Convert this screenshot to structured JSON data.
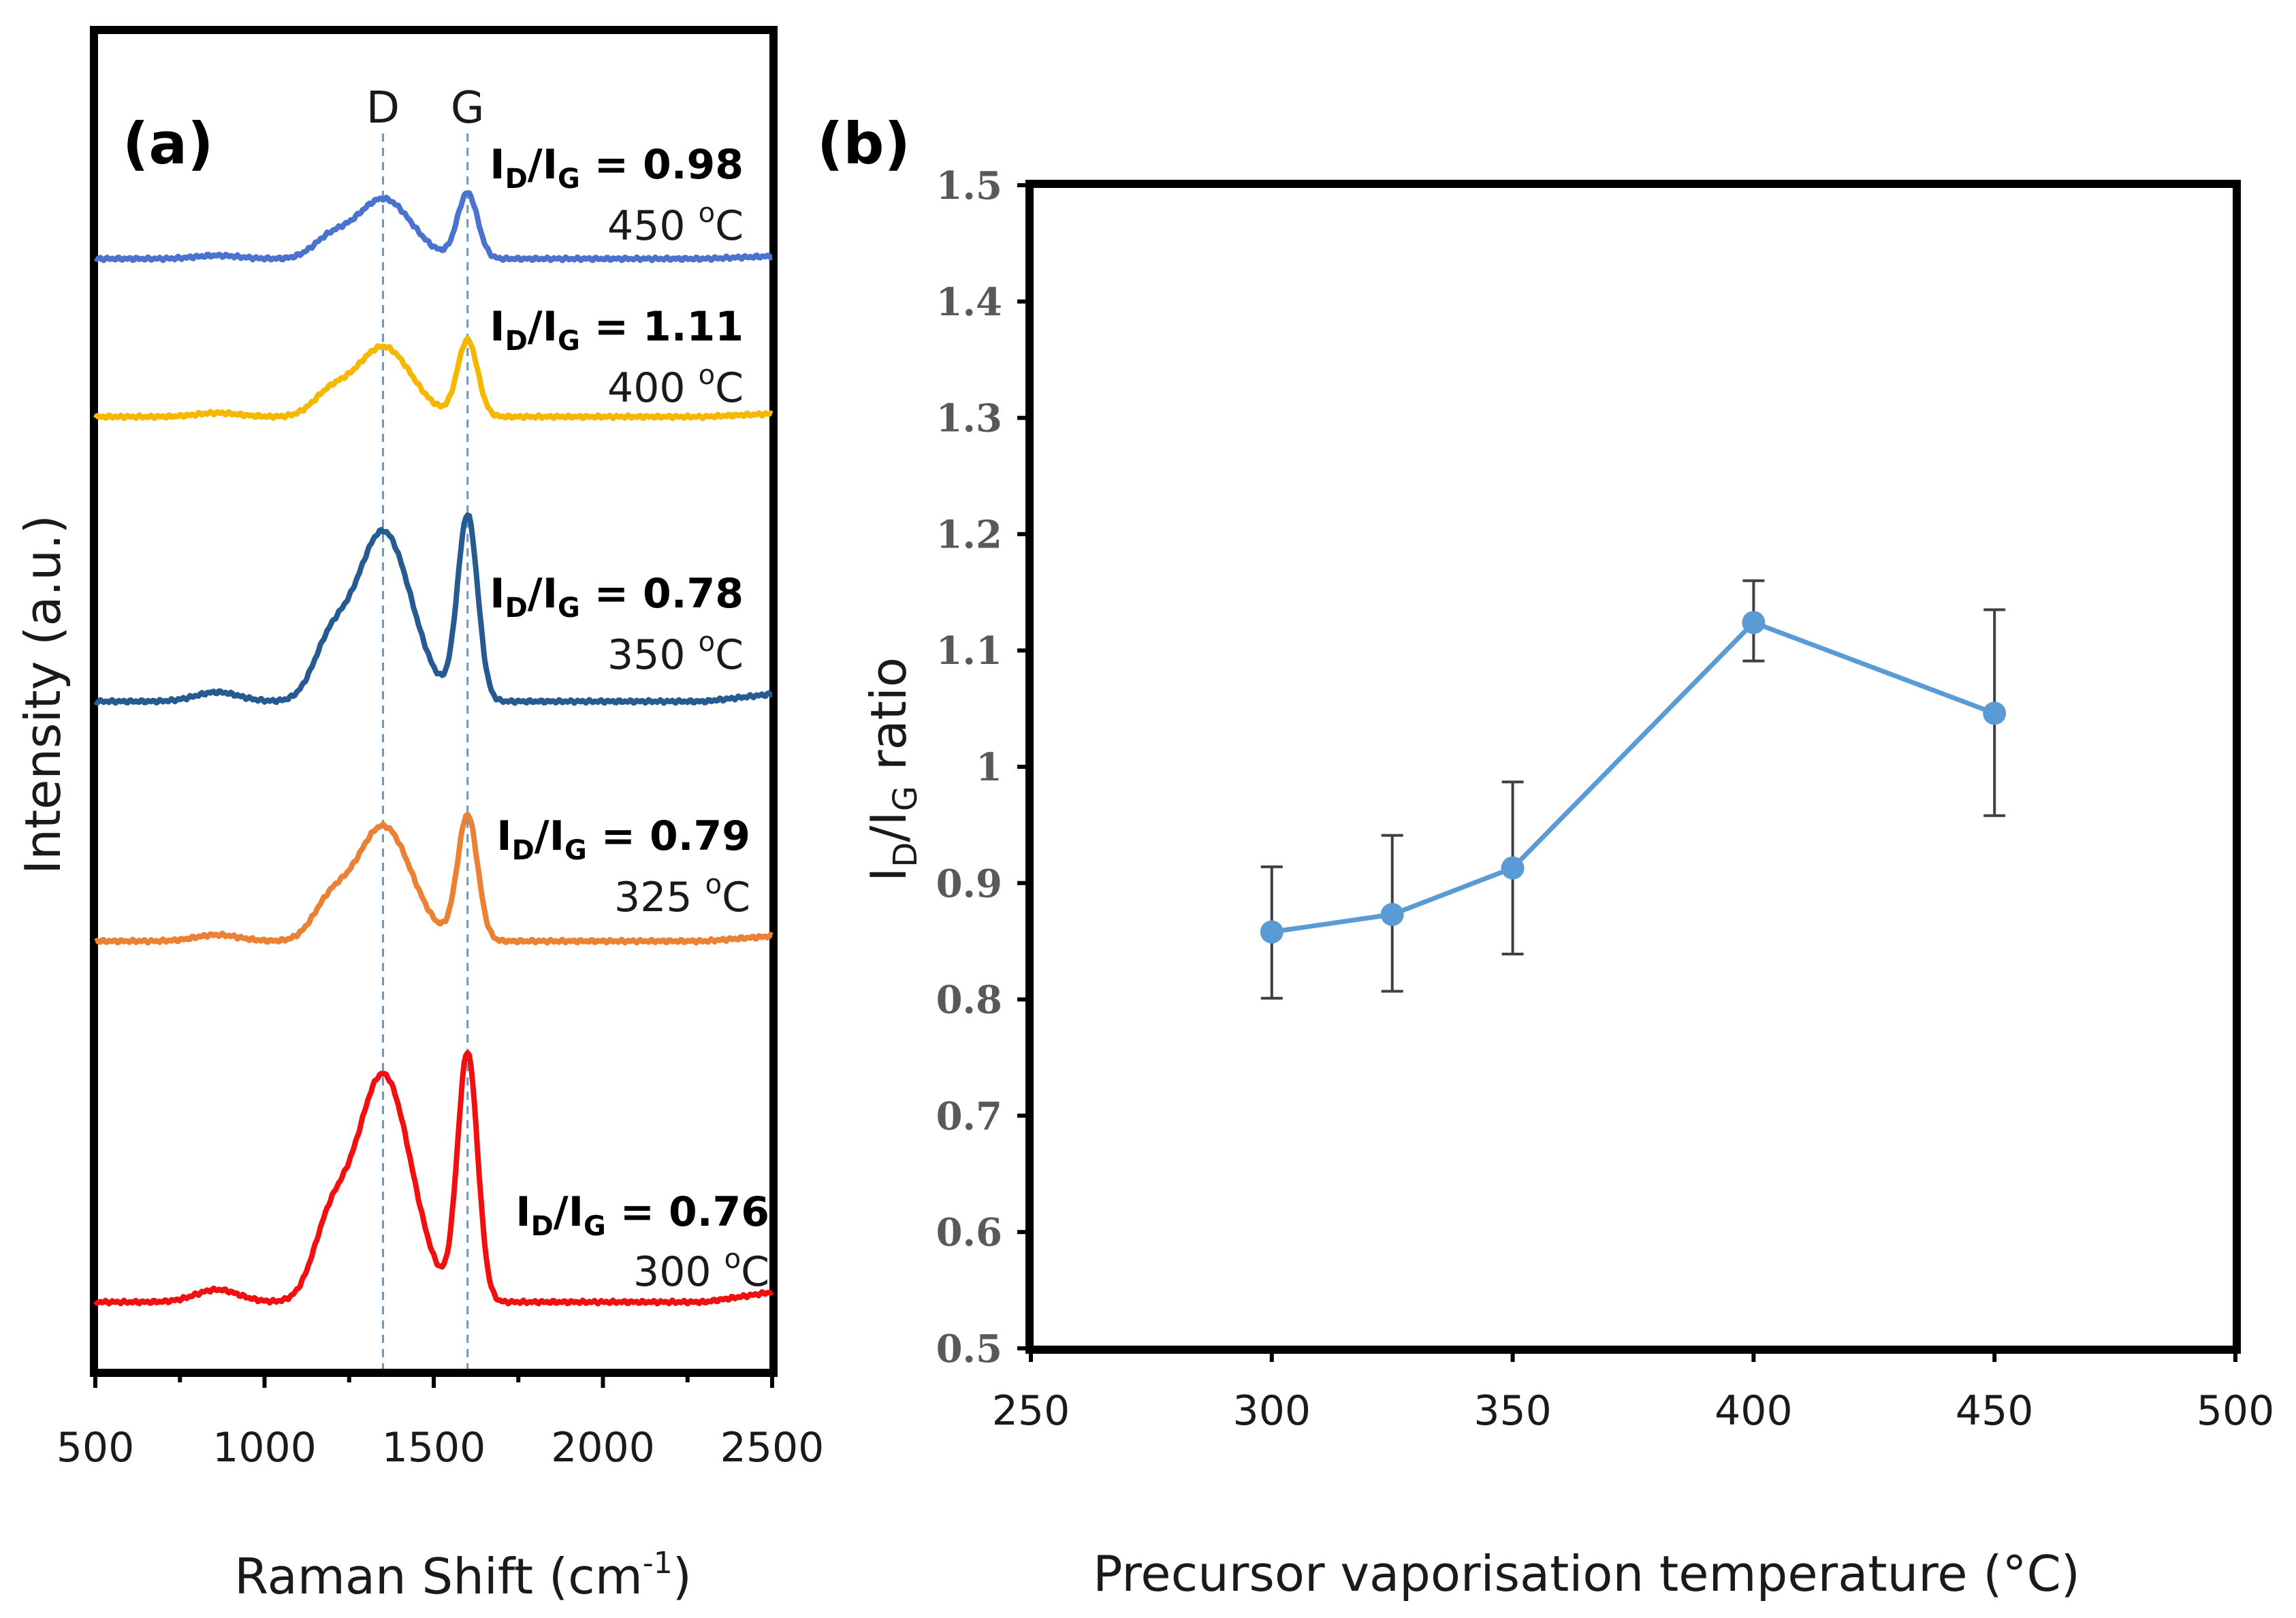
{
  "chart_data": [
    {
      "panel": "(a)",
      "type": "line",
      "xlabel_main": "Raman Shift (cm",
      "xlabel_sup": "-1",
      "xlabel_close": ")",
      "ylabel": "Intensity (a.u.)",
      "xlim": [
        500,
        2500
      ],
      "x_ticks": [
        "500",
        "1000",
        "1500",
        "2000",
        "2500"
      ],
      "peak_labels": [
        {
          "label": "D",
          "position": 1350
        },
        {
          "label": "G",
          "position": 1600
        }
      ],
      "series": [
        {
          "name": "450 oC",
          "temp_value": "450 ",
          "temp_unit": "o",
          "temp_c": "C",
          "ratio": "0.98",
          "color": "#4a72cf",
          "peak_scale": 0.55
        },
        {
          "name": "400 oC",
          "temp_value": "400 ",
          "temp_unit": "o",
          "temp_c": "C",
          "ratio": "1.11",
          "color": "#f5b800",
          "peak_scale": 0.63
        },
        {
          "name": "350 oC",
          "temp_value": "350 ",
          "temp_unit": "o",
          "temp_c": "C",
          "ratio": "0.78",
          "color": "#265b91",
          "peak_scale": 1.85
        },
        {
          "name": "325 oC",
          "temp_value": "325 ",
          "temp_unit": "o",
          "temp_c": "C",
          "ratio": "0.79",
          "color": "#ea8135",
          "peak_scale": 1.0
        },
        {
          "name": "300 oC",
          "temp_value": "300 ",
          "temp_unit": "o",
          "temp_c": "C",
          "ratio": "0.76",
          "color": "#f20f0f",
          "peak_scale": 2.35
        }
      ],
      "ratio_prefix": "I",
      "ratio_sub_d": "D",
      "ratio_slash": "/I",
      "ratio_sub_g": "G",
      "ratio_eq": " = "
    },
    {
      "panel": "(b)",
      "type": "scatter",
      "xlabel": "Precursor vaporisation temperature (°C)",
      "ylabel_main": "I",
      "ylabel_sub1": "D",
      "ylabel_mid": "/I",
      "ylabel_sub2": "G",
      "ylabel_end": " ratio",
      "xlim": [
        250,
        500
      ],
      "ylim": [
        0.5,
        1.5
      ],
      "x_ticks": [
        "250",
        "300",
        "350",
        "400",
        "450",
        "500"
      ],
      "y_ticks": [
        "0.5",
        "0.6",
        "0.7",
        "0.8",
        "0.9",
        "1",
        "1.1",
        "1.2",
        "1.3",
        "1.4",
        "1.5"
      ],
      "x": [
        300,
        325,
        350,
        400,
        450
      ],
      "y": [
        0.858,
        0.873,
        0.913,
        1.124,
        1.046
      ],
      "err_low": [
        0.801,
        0.807,
        0.839,
        1.091,
        0.958
      ],
      "err_high": [
        0.914,
        0.941,
        0.987,
        1.16,
        1.135
      ],
      "color": "#5b9bd5"
    }
  ]
}
